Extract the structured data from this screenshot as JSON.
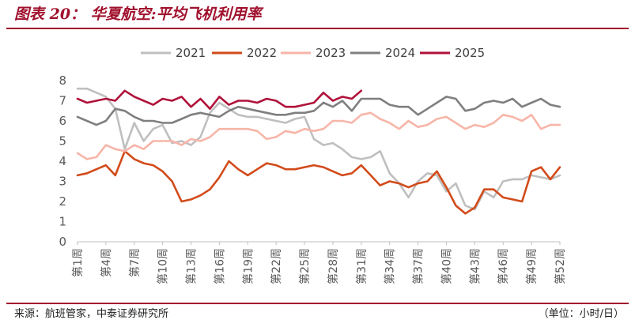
{
  "header": {
    "title": "图表 20：  华夏航空:平均飞机利用率"
  },
  "footer": {
    "source": "来源：航班管家，中泰证券研究所",
    "unit": "（单位：小时/日）"
  },
  "chart_data": {
    "type": "line",
    "title": "",
    "xlabel": "",
    "ylabel": "",
    "ylim": [
      0,
      8
    ],
    "yticks": [
      "0",
      "1",
      "2",
      "3",
      "4",
      "5",
      "6",
      "7",
      "8"
    ],
    "grid": false,
    "legend_position": "top",
    "x_tick_labels": [
      "第1周",
      "第4周",
      "第7周",
      "第10周",
      "第13周",
      "第16周",
      "第19周",
      "第22周",
      "第25周",
      "第28周",
      "第31周",
      "第34周",
      "第37周",
      "第40周",
      "第43周",
      "第46周",
      "第49周",
      "第52周"
    ],
    "x_tick_weeks": [
      1,
      4,
      7,
      10,
      13,
      16,
      19,
      22,
      25,
      28,
      31,
      34,
      37,
      40,
      43,
      46,
      49,
      52
    ],
    "series": [
      {
        "name": "2021",
        "color": "#bfbfbf",
        "weeks": [
          1,
          2,
          3,
          4,
          5,
          6,
          7,
          8,
          9,
          10,
          11,
          12,
          13,
          14,
          15,
          16,
          17,
          18,
          19,
          20,
          21,
          22,
          23,
          24,
          25,
          26,
          27,
          28,
          29,
          30,
          31,
          32,
          33,
          34,
          35,
          36,
          37,
          38,
          39,
          40,
          41,
          42,
          43,
          44,
          45,
          46,
          47,
          48,
          49,
          50,
          51,
          52
        ],
        "values": [
          7.6,
          7.6,
          7.4,
          7.2,
          6.6,
          4.6,
          5.9,
          5.0,
          5.6,
          5.8,
          4.9,
          5.0,
          4.8,
          5.2,
          6.4,
          6.9,
          6.6,
          6.3,
          6.2,
          6.2,
          6.1,
          6.0,
          5.9,
          6.1,
          6.2,
          5.1,
          4.8,
          4.9,
          4.6,
          4.2,
          4.1,
          4.2,
          4.5,
          3.4,
          2.9,
          2.2,
          3.0,
          3.4,
          3.3,
          2.5,
          2.9,
          1.8,
          1.6,
          2.5,
          2.2,
          3.0,
          3.1,
          3.1,
          3.3,
          3.2,
          3.1,
          3.3
        ]
      },
      {
        "name": "2022",
        "color": "#d24b1a",
        "weeks": [
          1,
          2,
          3,
          4,
          5,
          6,
          7,
          8,
          9,
          10,
          11,
          12,
          13,
          14,
          15,
          16,
          17,
          18,
          19,
          20,
          21,
          22,
          23,
          24,
          25,
          26,
          27,
          28,
          29,
          30,
          31,
          32,
          33,
          34,
          35,
          36,
          37,
          38,
          39,
          40,
          41,
          42,
          43,
          44,
          45,
          46,
          47,
          48,
          49,
          50,
          51,
          52
        ],
        "values": [
          3.3,
          3.4,
          3.6,
          3.8,
          3.3,
          4.5,
          4.1,
          3.9,
          3.8,
          3.5,
          3.0,
          2.0,
          2.1,
          2.3,
          2.6,
          3.2,
          4.0,
          3.6,
          3.3,
          3.6,
          3.9,
          3.8,
          3.6,
          3.6,
          3.7,
          3.8,
          3.7,
          3.5,
          3.3,
          3.4,
          3.8,
          3.3,
          2.8,
          3.0,
          2.9,
          2.7,
          2.9,
          3.0,
          3.5,
          2.7,
          1.8,
          1.4,
          1.7,
          2.6,
          2.6,
          2.2,
          2.1,
          2.0,
          3.5,
          3.7,
          3.1,
          3.7
        ]
      },
      {
        "name": "2023",
        "color": "#f7b5a8",
        "weeks": [
          1,
          2,
          3,
          4,
          5,
          6,
          7,
          8,
          9,
          10,
          11,
          12,
          13,
          14,
          15,
          16,
          17,
          18,
          19,
          20,
          21,
          22,
          23,
          24,
          25,
          26,
          27,
          28,
          29,
          30,
          31,
          32,
          33,
          34,
          35,
          36,
          37,
          38,
          39,
          40,
          41,
          42,
          43,
          44,
          45,
          46,
          47,
          48,
          49,
          50,
          51,
          52
        ],
        "values": [
          4.4,
          4.1,
          4.2,
          4.8,
          4.6,
          4.5,
          4.8,
          4.6,
          5.0,
          5.0,
          5.0,
          4.8,
          5.1,
          5.0,
          5.2,
          5.6,
          5.6,
          5.6,
          5.6,
          5.5,
          5.1,
          5.2,
          5.5,
          5.4,
          5.6,
          5.5,
          5.6,
          6.0,
          6.0,
          5.9,
          6.3,
          6.4,
          6.1,
          5.9,
          5.6,
          6.0,
          5.7,
          5.8,
          6.1,
          6.2,
          5.9,
          5.6,
          5.8,
          5.7,
          5.9,
          6.3,
          6.2,
          6.0,
          6.3,
          5.6,
          5.8,
          5.8
        ]
      },
      {
        "name": "2024",
        "color": "#7f7f7f",
        "weeks": [
          1,
          2,
          3,
          4,
          5,
          6,
          7,
          8,
          9,
          10,
          11,
          12,
          13,
          14,
          15,
          16,
          17,
          18,
          19,
          20,
          21,
          22,
          23,
          24,
          25,
          26,
          27,
          28,
          29,
          30,
          31,
          32,
          33,
          34,
          35,
          36,
          37,
          38,
          39,
          40,
          41,
          42,
          43,
          44,
          45,
          46,
          47,
          48,
          49,
          50,
          51,
          52
        ],
        "values": [
          6.2,
          6.0,
          5.8,
          6.0,
          6.6,
          6.5,
          6.2,
          6.0,
          6.0,
          5.9,
          5.9,
          6.1,
          6.3,
          6.4,
          6.3,
          6.2,
          6.5,
          6.7,
          6.6,
          6.5,
          6.4,
          6.3,
          6.3,
          6.4,
          6.4,
          6.5,
          6.9,
          6.7,
          7.0,
          6.5,
          7.1,
          7.1,
          7.1,
          6.8,
          6.7,
          6.7,
          6.3,
          6.6,
          6.9,
          7.2,
          7.1,
          6.5,
          6.6,
          6.9,
          7.0,
          6.9,
          7.1,
          6.7,
          6.9,
          7.1,
          6.8,
          6.7
        ]
      },
      {
        "name": "2025",
        "color": "#b0123a",
        "weeks": [
          1,
          2,
          3,
          4,
          5,
          6,
          7,
          8,
          9,
          10,
          11,
          12,
          13,
          14,
          15,
          16,
          17,
          18,
          19,
          20,
          21,
          22,
          23,
          24,
          25,
          26,
          27,
          28,
          29,
          30,
          31
        ],
        "values": [
          7.1,
          6.9,
          7.0,
          7.1,
          7.0,
          7.5,
          7.2,
          7.0,
          6.8,
          7.1,
          7.0,
          7.2,
          6.7,
          7.1,
          6.6,
          7.2,
          6.8,
          7.0,
          7.0,
          6.9,
          7.1,
          7.0,
          6.7,
          6.7,
          6.8,
          6.9,
          7.4,
          7.0,
          7.2,
          7.1,
          7.5
        ]
      }
    ]
  }
}
